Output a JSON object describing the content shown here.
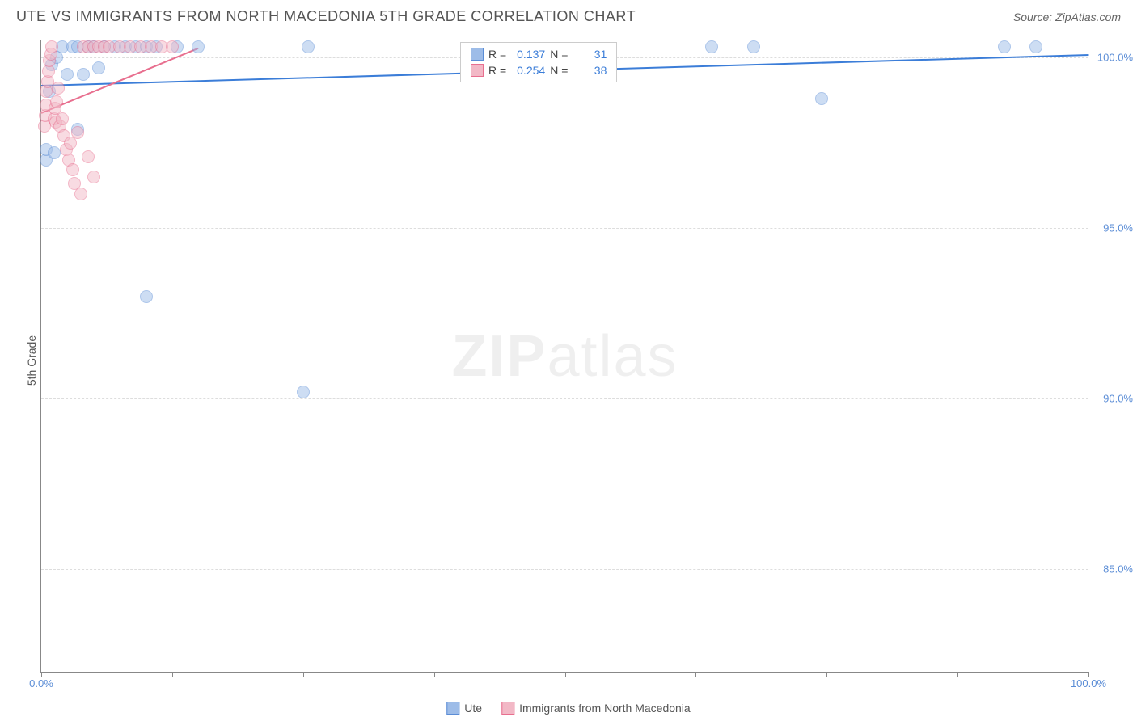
{
  "header": {
    "title": "UTE VS IMMIGRANTS FROM NORTH MACEDONIA 5TH GRADE CORRELATION CHART",
    "source": "Source: ZipAtlas.com"
  },
  "ylabel": "5th Grade",
  "watermark_bold": "ZIP",
  "watermark_light": "atlas",
  "chart": {
    "type": "scatter",
    "xlim": [
      0,
      100
    ],
    "ylim": [
      82,
      100.5
    ],
    "background_color": "#ffffff",
    "grid_color": "#dddddd",
    "axis_color": "#888888",
    "tick_label_color": "#5b8dd6",
    "marker_size": 16,
    "marker_opacity": 0.5,
    "yticks": [
      {
        "v": 100,
        "label": "100.0%"
      },
      {
        "v": 95,
        "label": "95.0%"
      },
      {
        "v": 90,
        "label": "90.0%"
      },
      {
        "v": 85,
        "label": "85.0%"
      }
    ],
    "xticks_minor": [
      0,
      12.5,
      25,
      37.5,
      50,
      62.5,
      75,
      87.5,
      100
    ],
    "xticks_labeled": [
      {
        "v": 0,
        "label": "0.0%"
      },
      {
        "v": 100,
        "label": "100.0%"
      }
    ],
    "series": [
      {
        "name": "Ute",
        "color_fill": "#9dbce8",
        "color_stroke": "#5b8dd6",
        "R_label": "R =",
        "R": "0.137",
        "N_label": "N =",
        "N": "31",
        "trend": {
          "x1": 0,
          "y1": 99.2,
          "x2": 100,
          "y2": 100.1,
          "color": "#3b7dd8",
          "width": 2
        },
        "points": [
          {
            "x": 0.5,
            "y": 97.0
          },
          {
            "x": 0.5,
            "y": 97.3
          },
          {
            "x": 0.8,
            "y": 99.0
          },
          {
            "x": 1.0,
            "y": 99.8
          },
          {
            "x": 1.2,
            "y": 97.2
          },
          {
            "x": 1.5,
            "y": 100.0
          },
          {
            "x": 2.0,
            "y": 100.3
          },
          {
            "x": 2.5,
            "y": 99.5
          },
          {
            "x": 3.0,
            "y": 100.3
          },
          {
            "x": 3.5,
            "y": 100.3
          },
          {
            "x": 4.0,
            "y": 99.5
          },
          {
            "x": 4.5,
            "y": 100.3
          },
          {
            "x": 5.0,
            "y": 100.3
          },
          {
            "x": 5.5,
            "y": 99.7
          },
          {
            "x": 6.0,
            "y": 100.3
          },
          {
            "x": 7.0,
            "y": 100.3
          },
          {
            "x": 8.0,
            "y": 100.3
          },
          {
            "x": 9.0,
            "y": 100.3
          },
          {
            "x": 10.0,
            "y": 100.3
          },
          {
            "x": 11.0,
            "y": 100.3
          },
          {
            "x": 13.0,
            "y": 100.3
          },
          {
            "x": 15.0,
            "y": 100.3
          },
          {
            "x": 25.5,
            "y": 100.3
          },
          {
            "x": 64.0,
            "y": 100.3
          },
          {
            "x": 68.0,
            "y": 100.3
          },
          {
            "x": 92.0,
            "y": 100.3
          },
          {
            "x": 95.0,
            "y": 100.3
          },
          {
            "x": 74.5,
            "y": 98.8
          },
          {
            "x": 10.0,
            "y": 93.0
          },
          {
            "x": 25.0,
            "y": 90.2
          },
          {
            "x": 3.5,
            "y": 97.9
          }
        ]
      },
      {
        "name": "Immigrants from North Macedonia",
        "color_fill": "#f2b8c6",
        "color_stroke": "#e86f8f",
        "R_label": "R =",
        "R": "0.254",
        "N_label": "N =",
        "N": "38",
        "trend": {
          "x1": 0,
          "y1": 98.4,
          "x2": 15,
          "y2": 100.3,
          "color": "#e86f8f",
          "width": 2
        },
        "points": [
          {
            "x": 0.3,
            "y": 98.0
          },
          {
            "x": 0.4,
            "y": 98.3
          },
          {
            "x": 0.5,
            "y": 98.6
          },
          {
            "x": 0.5,
            "y": 99.0
          },
          {
            "x": 0.6,
            "y": 99.3
          },
          {
            "x": 0.7,
            "y": 99.6
          },
          {
            "x": 0.8,
            "y": 99.9
          },
          {
            "x": 0.9,
            "y": 100.1
          },
          {
            "x": 1.0,
            "y": 100.3
          },
          {
            "x": 1.2,
            "y": 98.2
          },
          {
            "x": 1.3,
            "y": 98.5
          },
          {
            "x": 1.4,
            "y": 98.1
          },
          {
            "x": 1.5,
            "y": 98.7
          },
          {
            "x": 1.6,
            "y": 99.1
          },
          {
            "x": 1.8,
            "y": 98.0
          },
          {
            "x": 2.0,
            "y": 98.2
          },
          {
            "x": 2.2,
            "y": 97.7
          },
          {
            "x": 2.4,
            "y": 97.3
          },
          {
            "x": 2.6,
            "y": 97.0
          },
          {
            "x": 2.8,
            "y": 97.5
          },
          {
            "x": 3.0,
            "y": 96.7
          },
          {
            "x": 3.2,
            "y": 96.3
          },
          {
            "x": 3.5,
            "y": 97.8
          },
          {
            "x": 3.8,
            "y": 96.0
          },
          {
            "x": 4.0,
            "y": 100.3
          },
          {
            "x": 4.5,
            "y": 100.3
          },
          {
            "x": 5.0,
            "y": 100.3
          },
          {
            "x": 5.5,
            "y": 100.3
          },
          {
            "x": 6.0,
            "y": 100.3
          },
          {
            "x": 6.5,
            "y": 100.3
          },
          {
            "x": 7.5,
            "y": 100.3
          },
          {
            "x": 8.5,
            "y": 100.3
          },
          {
            "x": 9.5,
            "y": 100.3
          },
          {
            "x": 10.5,
            "y": 100.3
          },
          {
            "x": 11.5,
            "y": 100.3
          },
          {
            "x": 12.5,
            "y": 100.3
          },
          {
            "x": 4.5,
            "y": 97.1
          },
          {
            "x": 5.0,
            "y": 96.5
          }
        ]
      }
    ]
  },
  "legend_bottom": [
    {
      "swatch_fill": "#9dbce8",
      "swatch_stroke": "#5b8dd6",
      "label": "Ute"
    },
    {
      "swatch_fill": "#f2b8c6",
      "swatch_stroke": "#e86f8f",
      "label": "Immigrants from North Macedonia"
    }
  ]
}
